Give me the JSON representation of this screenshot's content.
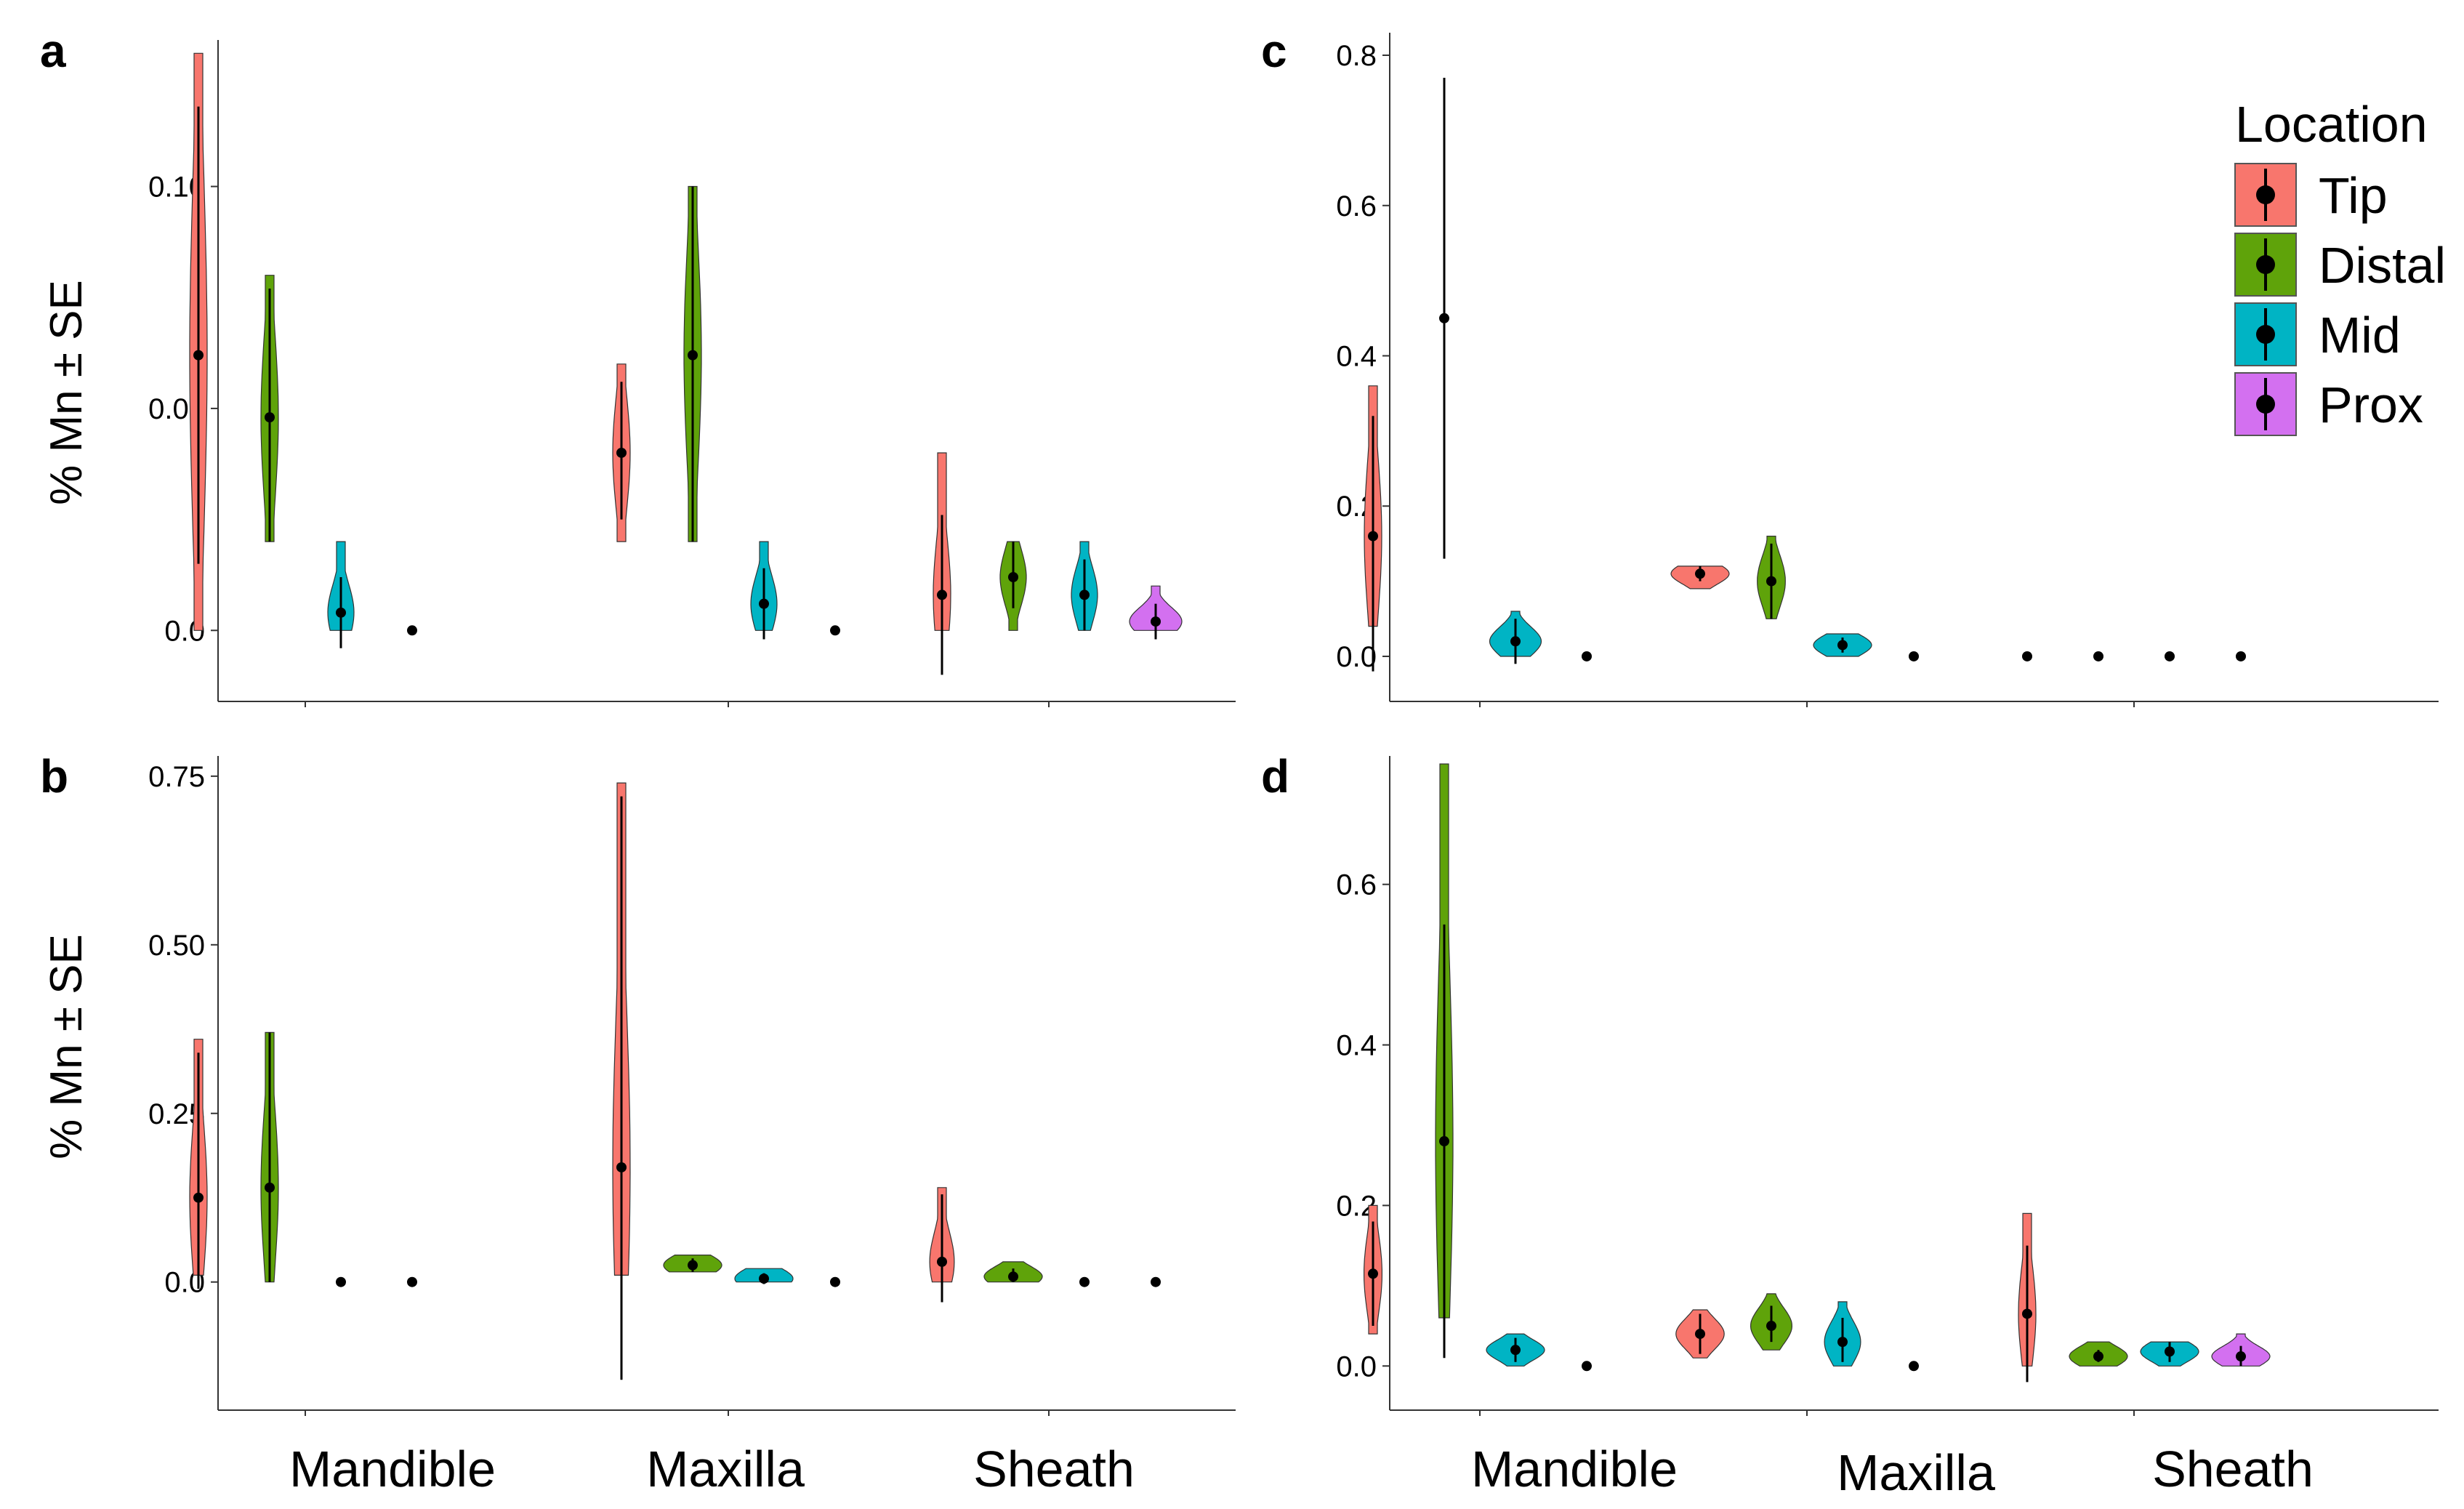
{
  "figure": {
    "ylabel": "% Mn ± SE",
    "categories": [
      "Mandible",
      "Maxilla",
      "Sheath"
    ]
  },
  "legend": {
    "title": "Location",
    "items": [
      {
        "label": "Tip",
        "color": "#F8766D"
      },
      {
        "label": "Distal",
        "color": "#5FA30A"
      },
      {
        "label": "Mid",
        "color": "#00B4C4"
      },
      {
        "label": "Prox",
        "color": "#D370F0"
      }
    ]
  },
  "chart_data": [
    {
      "panel": "a",
      "type": "violin",
      "categories": [
        "Mandible",
        "Maxilla",
        "Sheath"
      ],
      "ylabel": "% Mn ± SE",
      "yticks": [
        0.0,
        0.05,
        0.1
      ],
      "ytick_labels": [
        "0.0",
        "0.05",
        "0.10"
      ],
      "ylim": [
        -0.016,
        0.133
      ],
      "series": [
        {
          "name": "Tip",
          "mean": [
            0.062,
            0.04,
            0.008
          ],
          "lower": [
            0.015,
            0.025,
            -0.01
          ],
          "upper": [
            0.118,
            0.056,
            0.026
          ],
          "min": [
            0.0,
            0.02,
            0.0
          ],
          "max": [
            0.13,
            0.06,
            0.04
          ]
        },
        {
          "name": "Distal",
          "mean": [
            0.048,
            0.062,
            0.012
          ],
          "lower": [
            0.02,
            0.02,
            0.005
          ],
          "upper": [
            0.077,
            0.1,
            0.02
          ],
          "min": [
            0.02,
            0.02,
            0.0
          ],
          "max": [
            0.08,
            0.1,
            0.02
          ]
        },
        {
          "name": "Mid",
          "mean": [
            0.004,
            0.006,
            0.008
          ],
          "lower": [
            -0.004,
            -0.002,
            0.0
          ],
          "upper": [
            0.012,
            0.014,
            0.016
          ],
          "min": [
            0.0,
            0.0,
            0.0
          ],
          "max": [
            0.02,
            0.02,
            0.02
          ]
        },
        {
          "name": "Prox",
          "mean": [
            0.0,
            0.0,
            0.002
          ],
          "lower": [
            0.0,
            0.0,
            -0.002
          ],
          "upper": [
            0.0,
            0.0,
            0.006
          ],
          "min": [
            0.0,
            0.0,
            0.0
          ],
          "max": [
            0.0,
            0.0,
            0.01
          ]
        }
      ]
    },
    {
      "panel": "b",
      "type": "violin",
      "categories": [
        "Mandible",
        "Maxilla",
        "Sheath"
      ],
      "ylabel": "% Mn ± SE",
      "yticks": [
        0.0,
        0.25,
        0.5,
        0.75
      ],
      "ytick_labels": [
        "0.0",
        "0.25",
        "0.50",
        "0.75"
      ],
      "ylim": [
        -0.19,
        0.78
      ],
      "series": [
        {
          "name": "Tip",
          "mean": [
            0.125,
            0.17,
            0.03
          ],
          "lower": [
            -0.01,
            -0.145,
            -0.03
          ],
          "upper": [
            0.34,
            0.72,
            0.13
          ],
          "min": [
            0.01,
            0.01,
            0.0
          ],
          "max": [
            0.36,
            0.74,
            0.14
          ]
        },
        {
          "name": "Distal",
          "mean": [
            0.14,
            0.025,
            0.008
          ],
          "lower": [
            0.0,
            0.015,
            0.0
          ],
          "upper": [
            0.37,
            0.035,
            0.02
          ],
          "min": [
            0.0,
            0.015,
            0.0
          ],
          "max": [
            0.37,
            0.04,
            0.03
          ]
        },
        {
          "name": "Mid",
          "mean": [
            0.0,
            0.005,
            0.0
          ],
          "lower": [
            0.0,
            -0.003,
            0.0
          ],
          "upper": [
            0.0,
            0.013,
            0.0
          ],
          "min": [
            0.0,
            0.0,
            0.0
          ],
          "max": [
            0.0,
            0.02,
            0.0
          ]
        },
        {
          "name": "Prox",
          "mean": [
            0.0,
            0.0,
            0.0
          ],
          "lower": [
            0.0,
            0.0,
            0.0
          ],
          "upper": [
            0.0,
            0.0,
            0.0
          ],
          "min": [
            0.0,
            0.0,
            0.0
          ],
          "max": [
            0.0,
            0.0,
            0.0
          ]
        }
      ]
    },
    {
      "panel": "c",
      "type": "violin",
      "categories": [
        "Mandible",
        "Maxilla",
        "Sheath"
      ],
      "yticks": [
        0.0,
        0.2,
        0.4,
        0.6,
        0.8
      ],
      "ytick_labels": [
        "0.0",
        "0.2",
        "0.4",
        "0.6",
        "0.8"
      ],
      "ylim": [
        -0.06,
        0.83
      ],
      "series": [
        {
          "name": "Tip",
          "mean": [
            0.16,
            0.11,
            0.0
          ],
          "lower": [
            -0.02,
            0.1,
            0.0
          ],
          "upper": [
            0.32,
            0.12,
            0.0
          ],
          "min": [
            0.04,
            0.09,
            0.0
          ],
          "max": [
            0.36,
            0.12,
            0.0
          ]
        },
        {
          "name": "Distal",
          "mean": [
            0.45,
            0.1,
            0.0
          ],
          "lower": [
            0.13,
            0.05,
            0.0
          ],
          "upper": [
            0.77,
            0.15,
            0.0
          ],
          "min": [
            0.45,
            0.05,
            0.0
          ],
          "max": [
            0.45,
            0.16,
            0.0
          ]
        },
        {
          "name": "Mid",
          "mean": [
            0.02,
            0.015,
            0.0
          ],
          "lower": [
            -0.01,
            0.005,
            0.0
          ],
          "upper": [
            0.05,
            0.025,
            0.0
          ],
          "min": [
            0.0,
            0.0,
            0.0
          ],
          "max": [
            0.06,
            0.03,
            0.0
          ]
        },
        {
          "name": "Prox",
          "mean": [
            0.0,
            0.0,
            0.0
          ],
          "lower": [
            0.0,
            0.0,
            0.0
          ],
          "upper": [
            0.0,
            0.0,
            0.0
          ],
          "min": [
            0.0,
            0.0,
            0.0
          ],
          "max": [
            0.0,
            0.0,
            0.0
          ]
        }
      ]
    },
    {
      "panel": "d",
      "type": "violin",
      "categories": [
        "Mandible",
        "Maxilla",
        "Sheath"
      ],
      "yticks": [
        0.0,
        0.2,
        0.4,
        0.6
      ],
      "ytick_labels": [
        "0.0",
        "0.2",
        "0.4",
        "0.6"
      ],
      "ylim": [
        -0.055,
        0.76
      ],
      "series": [
        {
          "name": "Tip",
          "mean": [
            0.115,
            0.04,
            0.065
          ],
          "lower": [
            0.05,
            0.015,
            -0.02
          ],
          "upper": [
            0.18,
            0.065,
            0.15
          ],
          "min": [
            0.04,
            0.01,
            0.0
          ],
          "max": [
            0.2,
            0.07,
            0.19
          ]
        },
        {
          "name": "Distal",
          "mean": [
            0.28,
            0.05,
            0.012
          ],
          "lower": [
            0.01,
            0.03,
            0.005
          ],
          "upper": [
            0.55,
            0.075,
            0.02
          ],
          "min": [
            0.06,
            0.02,
            0.0
          ],
          "max": [
            0.75,
            0.09,
            0.03
          ]
        },
        {
          "name": "Mid",
          "mean": [
            0.02,
            0.03,
            0.018
          ],
          "lower": [
            0.005,
            0.005,
            0.005
          ],
          "upper": [
            0.035,
            0.06,
            0.03
          ],
          "min": [
            0.0,
            0.0,
            0.0
          ],
          "max": [
            0.04,
            0.08,
            0.03
          ]
        },
        {
          "name": "Prox",
          "mean": [
            0.0,
            0.0,
            0.012
          ],
          "lower": [
            0.0,
            0.0,
            0.0
          ],
          "upper": [
            0.0,
            0.0,
            0.025
          ],
          "min": [
            0.0,
            0.0,
            0.0
          ],
          "max": [
            0.0,
            0.0,
            0.04
          ]
        }
      ]
    }
  ]
}
